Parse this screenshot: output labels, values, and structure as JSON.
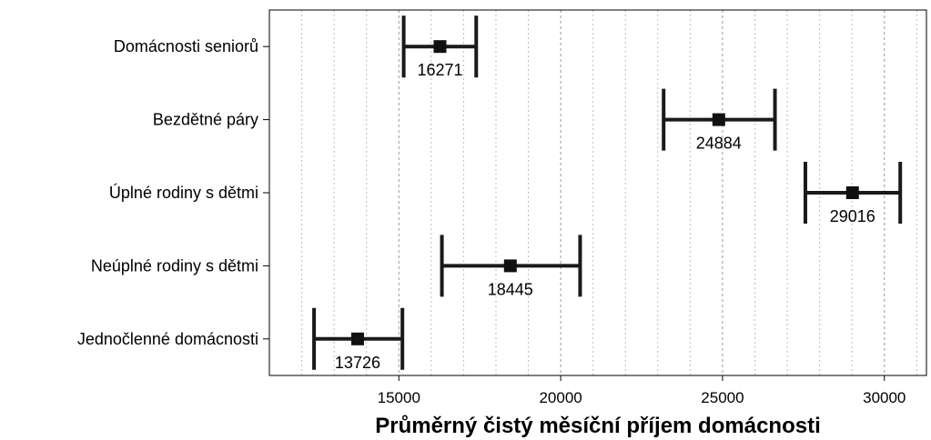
{
  "chart_data": {
    "type": "scatter",
    "title": "",
    "xlabel": "Průměrný čistý měsíční příjem domácnosti",
    "ylabel": "",
    "xlim": [
      11000,
      31300
    ],
    "xticks": [
      15000,
      20000,
      25000,
      30000
    ],
    "grid": {
      "vertical": true,
      "major_color": "#9a9a9a",
      "minor_color": "#bdbdbd",
      "step": 1000
    },
    "legend": "none",
    "marker_color": "#111111",
    "errorbar_color": "#1a1a1a",
    "categories": [
      "Domácnosti seniorů",
      "Bezdětné páry",
      "Úplné rodiny s dětmi",
      "Neúplné rodiny s dětmi",
      "Jednočlenné domácnosti"
    ],
    "points": [
      {
        "category": "Domácnosti seniorů",
        "value": 16271,
        "lower": 15150,
        "upper": 17390,
        "label": "16271"
      },
      {
        "category": "Bezdětné páry",
        "value": 24884,
        "lower": 23180,
        "upper": 26620,
        "label": "24884"
      },
      {
        "category": "Úplné rodiny s dětmi",
        "value": 29016,
        "lower": 27560,
        "upper": 30490,
        "label": "29016"
      },
      {
        "category": "Neúplné rodiny s dětmi",
        "value": 18445,
        "lower": 16330,
        "upper": 20600,
        "label": "18445"
      },
      {
        "category": "Jednočlenné domácnosti",
        "value": 13726,
        "lower": 12380,
        "upper": 15110,
        "label": "13726"
      }
    ]
  }
}
